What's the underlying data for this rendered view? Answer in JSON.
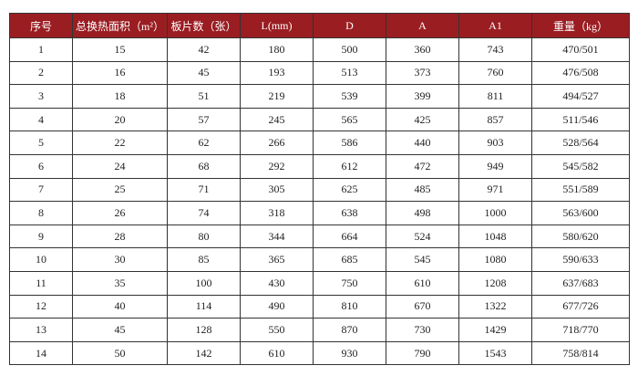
{
  "table": {
    "header": [
      "序号",
      "总换热面积（m²）",
      "板片数（张）",
      "L(mm)",
      "D",
      "A",
      "A1",
      "重量（kg）"
    ],
    "rows": [
      [
        "1",
        "15",
        "42",
        "180",
        "500",
        "360",
        "743",
        "470/501"
      ],
      [
        "2",
        "16",
        "45",
        "193",
        "513",
        "373",
        "760",
        "476/508"
      ],
      [
        "3",
        "18",
        "51",
        "219",
        "539",
        "399",
        "811",
        "494/527"
      ],
      [
        "4",
        "20",
        "57",
        "245",
        "565",
        "425",
        "857",
        "511/546"
      ],
      [
        "5",
        "22",
        "62",
        "266",
        "586",
        "440",
        "903",
        "528/564"
      ],
      [
        "6",
        "24",
        "68",
        "292",
        "612",
        "472",
        "949",
        "545/582"
      ],
      [
        "7",
        "25",
        "71",
        "305",
        "625",
        "485",
        "971",
        "551/589"
      ],
      [
        "8",
        "26",
        "74",
        "318",
        "638",
        "498",
        "1000",
        "563/600"
      ],
      [
        "9",
        "28",
        "80",
        "344",
        "664",
        "524",
        "1048",
        "580/620"
      ],
      [
        "10",
        "30",
        "85",
        "365",
        "685",
        "545",
        "1080",
        "590/633"
      ],
      [
        "11",
        "35",
        "100",
        "430",
        "750",
        "610",
        "1208",
        "637/683"
      ],
      [
        "12",
        "40",
        "114",
        "490",
        "810",
        "670",
        "1322",
        "677/726"
      ],
      [
        "13",
        "45",
        "128",
        "550",
        "870",
        "730",
        "1429",
        "718/770"
      ],
      [
        "14",
        "50",
        "142",
        "610",
        "930",
        "790",
        "1543",
        "758/814"
      ]
    ]
  }
}
